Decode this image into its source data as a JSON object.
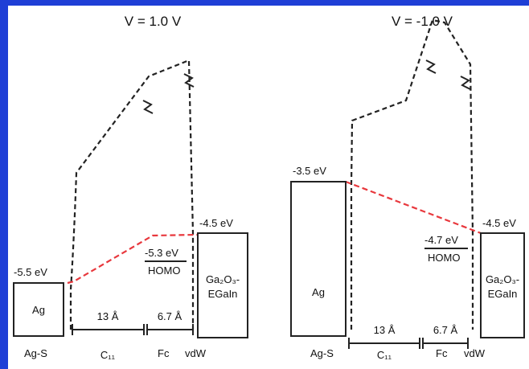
{
  "panels": [
    {
      "title": "V = 1.0 V",
      "metal": "Ag",
      "metal_level": "-5.5 eV",
      "electrode_lines": [
        "Ga₂O₃-",
        "EGaIn"
      ],
      "electrode_level": "-4.5 eV",
      "homo_level": "-5.3 eV",
      "homo": "HOMO",
      "distances": [
        "13 Å",
        "6.7 Å"
      ],
      "regions": [
        "Ag-S",
        "C₁₁",
        "Fc",
        "vdW"
      ]
    },
    {
      "title": "V = -1.0 V",
      "metal": "Ag",
      "metal_level": "-3.5 eV",
      "electrode_lines": [
        "Ga₂O₃-",
        "EGaIn"
      ],
      "electrode_level": "-4.5 eV",
      "homo_level": "-4.7 eV",
      "homo": "HOMO",
      "distances": [
        "13 Å",
        "6.7 Å"
      ],
      "regions": [
        "Ag-S",
        "C₁₁",
        "Fc",
        "vdW"
      ]
    }
  ]
}
